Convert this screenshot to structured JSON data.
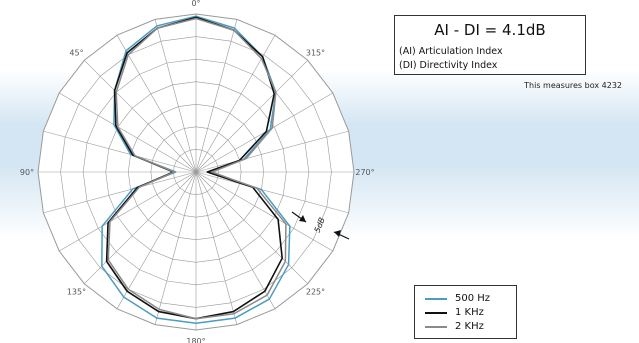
{
  "info": {
    "title": "AI - DI = 4.1dB",
    "line1": "(AI) Articulation Index",
    "line2": "(DI) Directivity Index"
  },
  "caption": "This measures box 4232",
  "chart_data": {
    "type": "polar",
    "angle_labels": [
      "0°",
      "45°",
      "90°",
      "135°",
      "180°",
      "225°",
      "270°",
      "315°"
    ],
    "angles": [
      0,
      15,
      30,
      45,
      60,
      75,
      90,
      105,
      120,
      135,
      150,
      165,
      180,
      195,
      210,
      225,
      240,
      255,
      270,
      285,
      300,
      315,
      330,
      345
    ],
    "scale_label": "5dB",
    "rings": 7,
    "rlim": [
      0,
      7
    ],
    "series": [
      {
        "name": "500 Hz",
        "color": "#4a9cc2",
        "values": [
          6.9,
          6.7,
          6.2,
          5.1,
          4.2,
          3.0,
          0.9,
          2.9,
          4.8,
          5.9,
          6.4,
          6.7,
          6.7,
          6.7,
          6.5,
          5.8,
          4.8,
          3.0,
          0.6,
          2.2,
          3.8,
          5.0,
          5.9,
          6.6
        ]
      },
      {
        "name": "1 KHz",
        "color": "#111111",
        "values": [
          6.85,
          6.6,
          6.1,
          5.1,
          4.1,
          2.9,
          1.0,
          2.7,
          4.5,
          5.6,
          6.1,
          6.4,
          6.5,
          6.4,
          6.1,
          5.4,
          4.2,
          2.6,
          0.5,
          2.0,
          3.6,
          4.9,
          5.9,
          6.5
        ]
      },
      {
        "name": "2 KHz",
        "color": "#8a8a8a",
        "values": [
          6.8,
          6.6,
          6.0,
          5.0,
          4.0,
          2.8,
          0.95,
          2.6,
          4.4,
          5.5,
          6.0,
          6.3,
          6.5,
          6.5,
          6.3,
          5.6,
          4.6,
          2.8,
          0.7,
          2.3,
          3.9,
          5.0,
          5.8,
          6.5
        ]
      }
    ],
    "legend_position": "bottom-right"
  }
}
